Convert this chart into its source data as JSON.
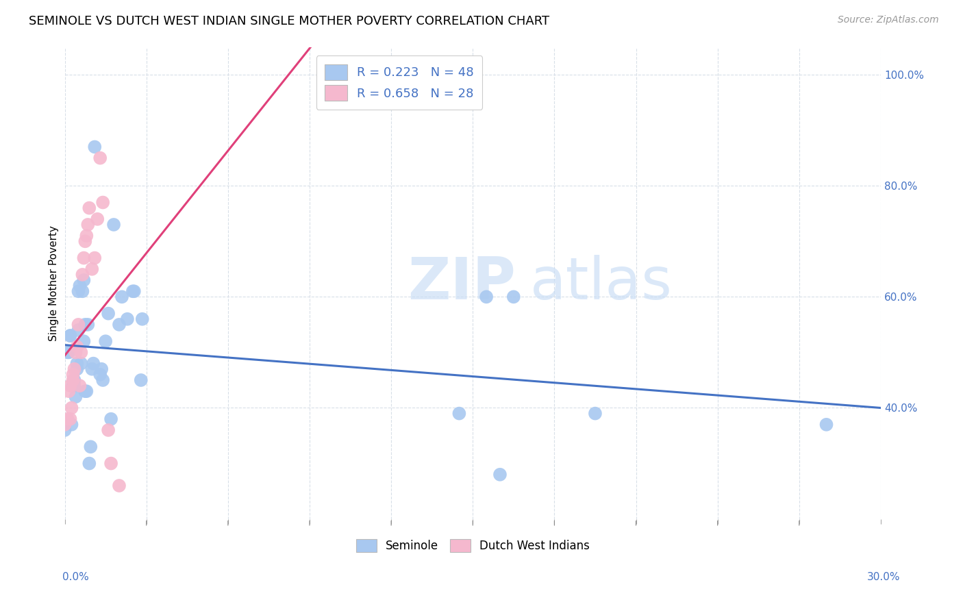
{
  "title": "SEMINOLE VS DUTCH WEST INDIAN SINGLE MOTHER POVERTY CORRELATION CHART",
  "source": "Source: ZipAtlas.com",
  "ylabel": "Single Mother Poverty",
  "legend_seminole_R": "0.223",
  "legend_seminole_N": "48",
  "legend_dutch_R": "0.658",
  "legend_dutch_N": "28",
  "seminole_color": "#a8c8f0",
  "dutch_color": "#f5b8ce",
  "seminole_line_color": "#4472c4",
  "dutch_line_color": "#e0407a",
  "watermark_zip": "ZIP",
  "watermark_atlas": "atlas",
  "seminole_x": [
    0.0,
    0.1,
    0.15,
    0.2,
    0.2,
    0.25,
    0.3,
    0.35,
    0.35,
    0.4,
    0.45,
    0.45,
    0.5,
    0.5,
    0.55,
    0.6,
    0.65,
    0.7,
    0.7,
    0.75,
    0.75,
    0.8,
    0.85,
    0.9,
    0.95,
    1.0,
    1.05,
    1.1,
    1.3,
    1.35,
    1.4,
    1.5,
    1.6,
    1.7,
    1.8,
    2.0,
    2.1,
    2.3,
    2.5,
    2.55,
    2.8,
    2.85,
    14.5,
    15.5,
    16.0,
    16.5,
    19.5,
    28.0
  ],
  "seminole_y": [
    36,
    50,
    50,
    53,
    53,
    37,
    44,
    44,
    45,
    42,
    47,
    48,
    54,
    61,
    62,
    48,
    61,
    63,
    52,
    55,
    43,
    43,
    55,
    30,
    33,
    47,
    48,
    87,
    46,
    47,
    45,
    52,
    57,
    38,
    73,
    55,
    60,
    56,
    61,
    61,
    45,
    56,
    39,
    60,
    28,
    60,
    39,
    37
  ],
  "dutch_x": [
    0.0,
    0.1,
    0.15,
    0.2,
    0.2,
    0.25,
    0.3,
    0.3,
    0.35,
    0.4,
    0.45,
    0.5,
    0.55,
    0.6,
    0.65,
    0.7,
    0.75,
    0.8,
    0.85,
    0.9,
    1.0,
    1.1,
    1.2,
    1.3,
    1.4,
    1.6,
    1.7,
    2.0
  ],
  "dutch_y": [
    37,
    38,
    43,
    44,
    38,
    40,
    45,
    46,
    47,
    50,
    51,
    55,
    44,
    50,
    64,
    67,
    70,
    71,
    73,
    76,
    65,
    67,
    74,
    85,
    77,
    36,
    30,
    26
  ],
  "xlim": [
    0.0,
    30.0
  ],
  "ylim": [
    20,
    105
  ],
  "yticks": [
    40,
    60,
    80,
    100
  ],
  "xtick_positions": [
    0,
    3,
    6,
    9,
    12,
    15,
    18,
    21,
    24,
    27,
    30
  ],
  "background_color": "#ffffff",
  "grid_color": "#d8dfe8",
  "title_fontsize": 13,
  "axis_label_fontsize": 11,
  "tick_label_fontsize": 11,
  "legend_fontsize": 13,
  "source_fontsize": 10,
  "watermark_fontsize_zip": 62,
  "watermark_fontsize_atlas": 62
}
